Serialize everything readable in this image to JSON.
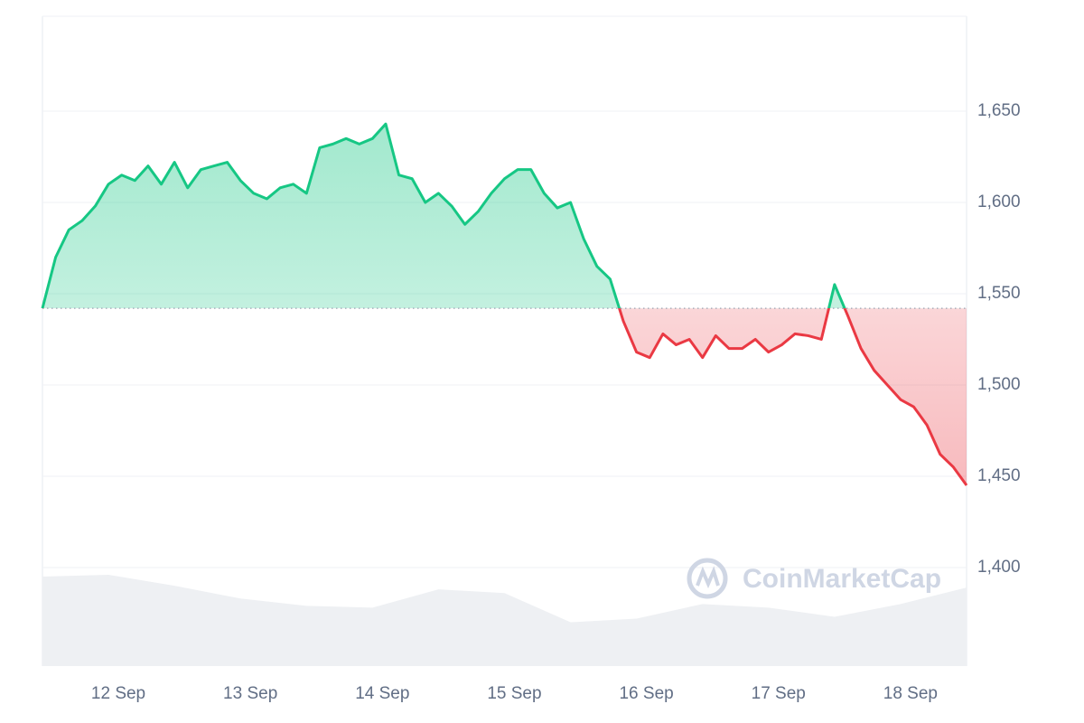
{
  "chart_data": {
    "type": "line",
    "watermark": "CoinMarketCap",
    "x": [
      0,
      0.1,
      0.2,
      0.3,
      0.4,
      0.5,
      0.6,
      0.7,
      0.8,
      0.9,
      1,
      1.1,
      1.2,
      1.3,
      1.4,
      1.5,
      1.6,
      1.7,
      1.8,
      1.9,
      2,
      2.1,
      2.2,
      2.3,
      2.4,
      2.5,
      2.6,
      2.7,
      2.8,
      2.9,
      3,
      3.1,
      3.2,
      3.3,
      3.4,
      3.5,
      3.6,
      3.7,
      3.8,
      3.9,
      4,
      4.1,
      4.2,
      4.3,
      4.4,
      4.5,
      4.6,
      4.7,
      4.8,
      4.9,
      5,
      5.1,
      5.2,
      5.3,
      5.4,
      5.5,
      5.6,
      5.7,
      5.8,
      5.9,
      6,
      6.1,
      6.2,
      6.3,
      6.4,
      6.5,
      6.6,
      6.7,
      6.8,
      6.9,
      7
    ],
    "values": [
      1542,
      1570,
      1585,
      1590,
      1598,
      1610,
      1615,
      1612,
      1620,
      1610,
      1622,
      1608,
      1618,
      1620,
      1622,
      1612,
      1605,
      1602,
      1608,
      1610,
      1605,
      1630,
      1632,
      1635,
      1632,
      1635,
      1643,
      1615,
      1613,
      1600,
      1605,
      1598,
      1588,
      1595,
      1605,
      1613,
      1618,
      1618,
      1605,
      1597,
      1600,
      1580,
      1565,
      1558,
      1535,
      1518,
      1515,
      1528,
      1522,
      1525,
      1515,
      1527,
      1520,
      1520,
      1525,
      1518,
      1522,
      1528,
      1527,
      1525,
      1555,
      1538,
      1520,
      1508,
      1500,
      1492,
      1488,
      1478,
      1462,
      1455,
      1445
    ],
    "baseline": 1542,
    "up_color": "#16c784",
    "down_color": "#ea3943",
    "volume": {
      "color": "#eef0f3",
      "x": [
        0,
        0.5,
        1,
        1.5,
        2,
        2.5,
        3,
        3.5,
        4,
        4.5,
        5,
        5.5,
        6,
        6.5,
        7
      ],
      "values": [
        1395,
        1396,
        1390,
        1383,
        1379,
        1378,
        1388,
        1386,
        1370,
        1372,
        1380,
        1378,
        1373,
        1380,
        1389
      ]
    },
    "xlim": [
      0,
      7
    ],
    "xticks": [
      {
        "value": 0.575,
        "label": "12 Sep"
      },
      {
        "value": 1.575,
        "label": "13 Sep"
      },
      {
        "value": 2.575,
        "label": "14 Sep"
      },
      {
        "value": 3.575,
        "label": "15 Sep"
      },
      {
        "value": 4.575,
        "label": "16 Sep"
      },
      {
        "value": 5.575,
        "label": "17 Sep"
      },
      {
        "value": 6.575,
        "label": "18 Sep"
      }
    ],
    "ylim": [
      1346,
      1702
    ],
    "yticks": [
      {
        "value": 1400,
        "label": "1,400"
      },
      {
        "value": 1450,
        "label": "1,450"
      },
      {
        "value": 1500,
        "label": "1,500"
      },
      {
        "value": 1550,
        "label": "1,550"
      },
      {
        "value": 1600,
        "label": "1,600"
      },
      {
        "value": 1650,
        "label": "1,650"
      }
    ],
    "grid": true
  }
}
